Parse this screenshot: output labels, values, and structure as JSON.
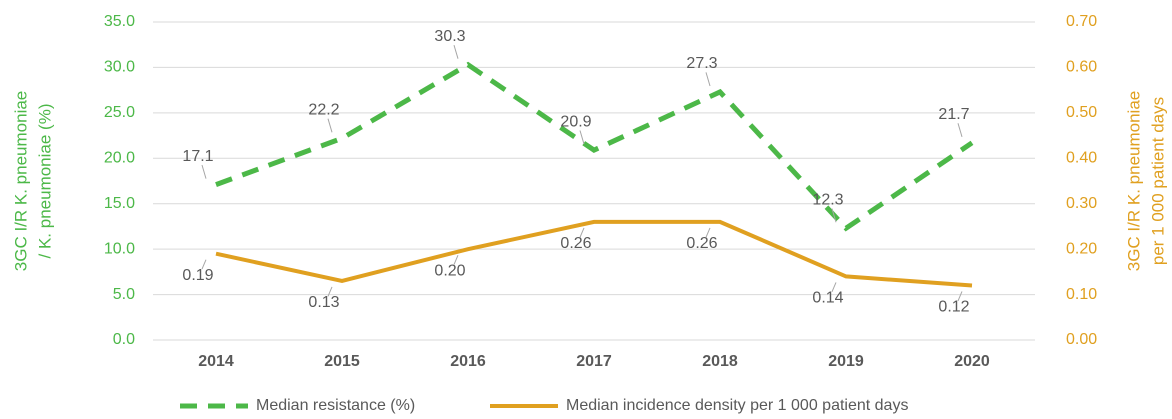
{
  "chart_data": {
    "type": "line",
    "categories": [
      "2014",
      "2015",
      "2016",
      "2017",
      "2018",
      "2019",
      "2020"
    ],
    "ylabel": [
      "3GC I/R K. pneumoniae",
      "/ K. pneumoniae (%)"
    ],
    "y2label": [
      "3GC I/R K. pneumoniae",
      "per 1 000 patient days"
    ],
    "ylim": [
      0,
      35
    ],
    "yticks": [
      {
        "value": 0,
        "label": "0.0"
      },
      {
        "value": 5,
        "label": "5.0"
      },
      {
        "value": 10,
        "label": "10.0"
      },
      {
        "value": 15,
        "label": "15.0"
      },
      {
        "value": 20,
        "label": "20.0"
      },
      {
        "value": 25,
        "label": "25.0"
      },
      {
        "value": 30,
        "label": "30.0"
      },
      {
        "value": 35,
        "label": "35.0"
      }
    ],
    "y2lim": [
      0,
      0.7
    ],
    "y2ticks": [
      {
        "value": 0,
        "label": "0.00"
      },
      {
        "value": 0.1,
        "label": "0.10"
      },
      {
        "value": 0.2,
        "label": "0.20"
      },
      {
        "value": 0.3,
        "label": "0.30"
      },
      {
        "value": 0.4,
        "label": "0.40"
      },
      {
        "value": 0.5,
        "label": "0.50"
      },
      {
        "value": 0.6,
        "label": "0.60"
      },
      {
        "value": 0.7,
        "label": "0.70"
      }
    ],
    "grid": true,
    "series": [
      {
        "name": "Median resistance (%)",
        "color": "#4cb848",
        "dashed": true,
        "values": [
          17.1,
          22.2,
          30.3,
          20.9,
          27.3,
          12.3,
          21.7
        ]
      },
      {
        "name": "Median incidence density per 1 000 patient days",
        "color": "#e0a020",
        "axis": "y2",
        "values": [
          0.19,
          0.13,
          0.2,
          0.26,
          0.26,
          0.14,
          0.12
        ],
        "value_labels": [
          "0.19",
          "0.13",
          "0.20",
          "0.26",
          "0.26",
          "0.14",
          "0.12"
        ]
      }
    ]
  }
}
